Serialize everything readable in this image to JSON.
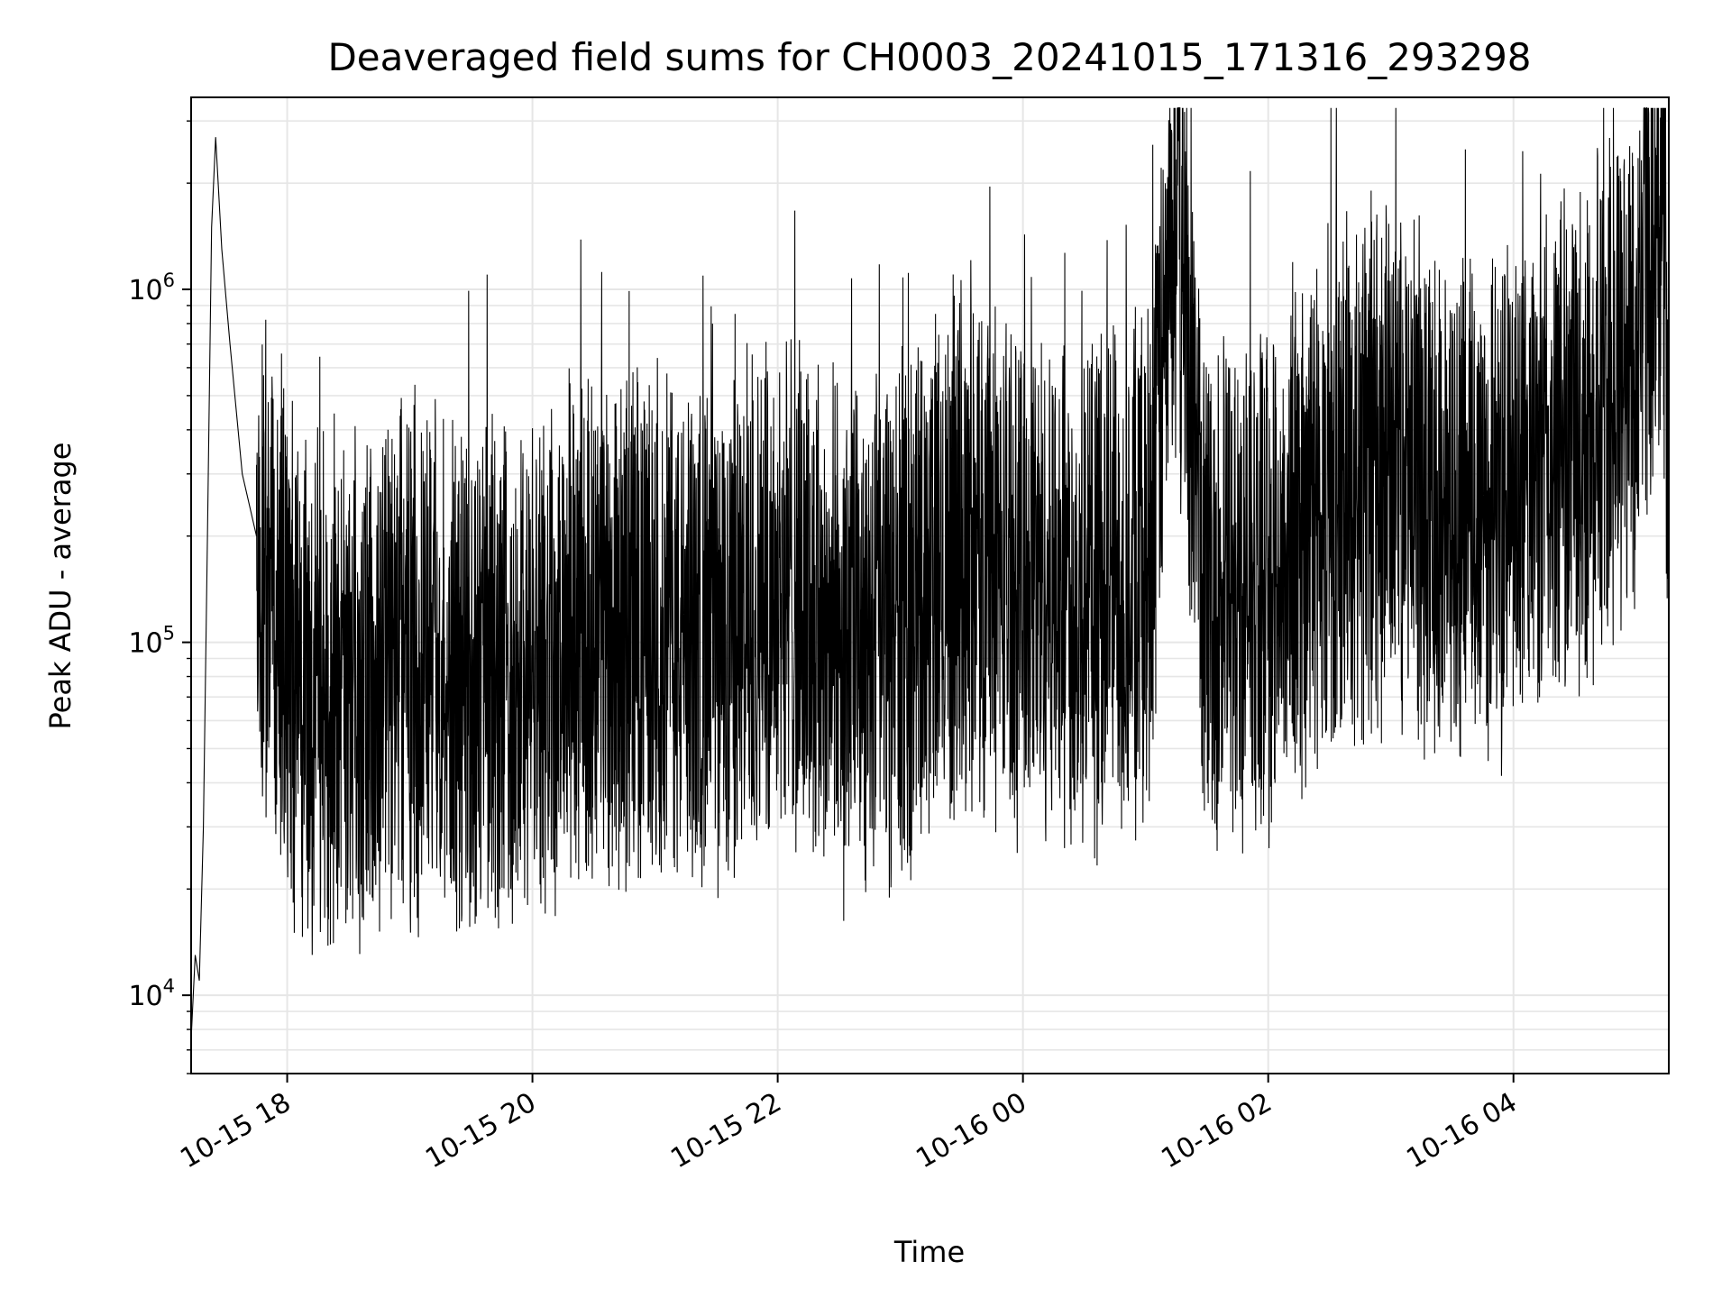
{
  "chart_data": {
    "type": "line",
    "title": "Deaveraged field sums for CH0003_20241015_171316_293298",
    "xlabel": "Time",
    "ylabel": "Peak ADU - average",
    "yscale": "log",
    "ylim": [
      6000,
      3500000
    ],
    "xlim": [
      "2024-10-15 17:13",
      "2024-10-16 05:16"
    ],
    "grid": true,
    "grid_color": "#e6e6e6",
    "line_color": "#000000",
    "x_ticks": [
      {
        "time": "2024-10-15 18:00",
        "label": "10-15 18"
      },
      {
        "time": "2024-10-15 20:00",
        "label": "10-15 20"
      },
      {
        "time": "2024-10-15 22:00",
        "label": "10-15 22"
      },
      {
        "time": "2024-10-16 00:00",
        "label": "10-16 00"
      },
      {
        "time": "2024-10-16 02:00",
        "label": "10-16 02"
      },
      {
        "time": "2024-10-16 04:00",
        "label": "10-16 04"
      }
    ],
    "y_ticks": [
      {
        "value": 10000,
        "base": "10",
        "exp": "4"
      },
      {
        "value": 100000,
        "base": "10",
        "exp": "5"
      },
      {
        "value": 1000000,
        "base": "10",
        "exp": "6"
      }
    ],
    "series": [
      {
        "description": "dense noisy series; values approximate",
        "points": [
          [
            "2024-10-15 17:13",
            7500
          ],
          [
            "2024-10-15 17:15",
            13000
          ],
          [
            "2024-10-15 17:17",
            11000
          ],
          [
            "2024-10-15 17:19",
            30000
          ],
          [
            "2024-10-15 17:21",
            200000
          ],
          [
            "2024-10-15 17:23",
            1500000
          ],
          [
            "2024-10-15 17:25",
            2700000
          ],
          [
            "2024-10-15 17:28",
            1300000
          ],
          [
            "2024-10-15 17:32",
            700000
          ],
          [
            "2024-10-15 17:38",
            300000
          ],
          [
            "2024-10-15 17:45",
            200000
          ],
          [
            "2024-10-15 18:00",
            80000
          ],
          [
            "2024-10-15 18:30",
            70000
          ],
          [
            "2024-10-15 19:00",
            85000
          ],
          [
            "2024-10-15 19:30",
            80000
          ],
          [
            "2024-10-15 20:00",
            80000
          ],
          [
            "2024-10-15 20:30",
            120000
          ],
          [
            "2024-10-15 21:00",
            110000
          ],
          [
            "2024-10-15 21:30",
            95000
          ],
          [
            "2024-10-15 22:00",
            150000
          ],
          [
            "2024-10-15 22:30",
            100000
          ],
          [
            "2024-10-15 23:00",
            110000
          ],
          [
            "2024-10-15 23:30",
            200000
          ],
          [
            "2024-10-16 00:00",
            150000
          ],
          [
            "2024-10-16 00:30",
            140000
          ],
          [
            "2024-10-16 01:00",
            160000
          ],
          [
            "2024-10-16 01:15",
            1700000
          ],
          [
            "2024-10-16 01:30",
            130000
          ],
          [
            "2024-10-16 02:00",
            150000
          ],
          [
            "2024-10-16 02:30",
            250000
          ],
          [
            "2024-10-16 03:00",
            300000
          ],
          [
            "2024-10-16 03:30",
            250000
          ],
          [
            "2024-10-16 04:00",
            250000
          ],
          [
            "2024-10-16 04:30",
            350000
          ],
          [
            "2024-10-16 05:00",
            700000
          ],
          [
            "2024-10-16 05:12",
            2300000
          ],
          [
            "2024-10-16 05:16",
            400000
          ]
        ]
      }
    ]
  }
}
